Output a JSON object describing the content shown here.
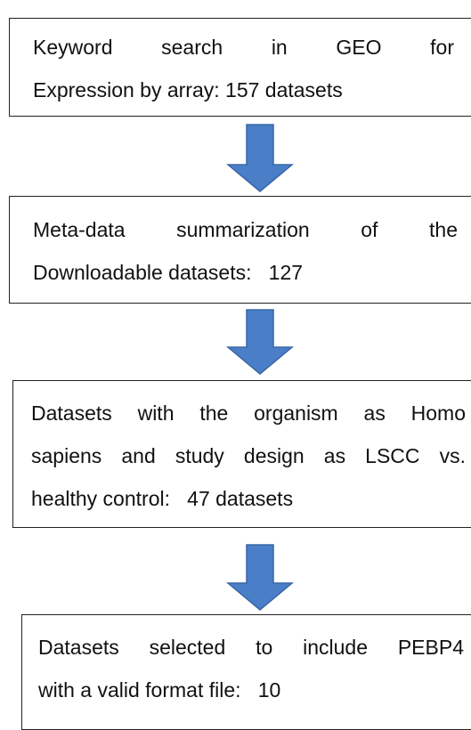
{
  "nodes": [
    {
      "lines": [
        "Keyword search in GEO for",
        "Expression by array: 157 datasets"
      ]
    },
    {
      "lines": [
        "Meta-data summarization of the",
        "Downloadable datasets:   127"
      ]
    },
    {
      "lines": [
        "Datasets with the organism as Homo",
        "sapiens and study design as LSCC vs.",
        "healthy control:   47 datasets"
      ]
    },
    {
      "lines": [
        "Datasets selected to include PEBP4",
        "with a valid format file:   10"
      ]
    }
  ]
}
